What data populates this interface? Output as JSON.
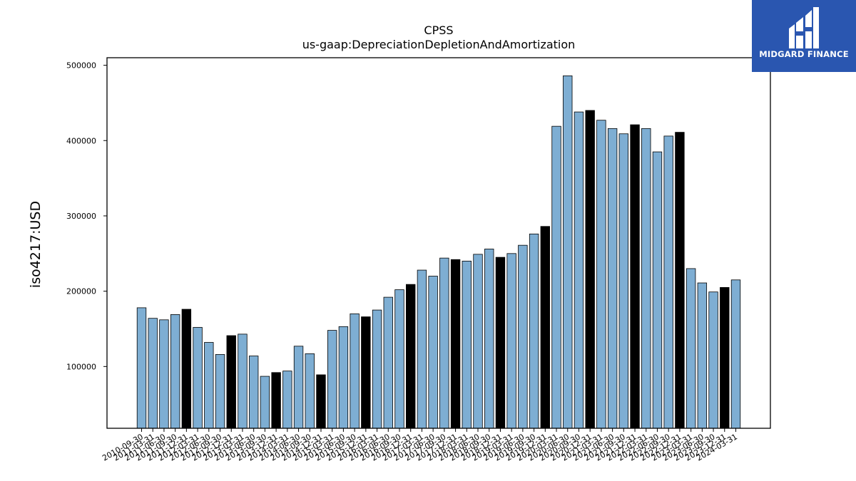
{
  "brand": {
    "name": "MIDGARD FINANCE",
    "logo_icon": "midgard-logo-icon",
    "background": "#2a56b0"
  },
  "chart_data": {
    "type": "bar",
    "title": "CPSS",
    "subtitle": "us-gaap:DepreciationDepletionAndAmortization",
    "xlabel": "",
    "ylabel": "iso4217:USD",
    "ylim": [
      18000,
      510000
    ],
    "yticks": [
      100000,
      200000,
      300000,
      400000,
      500000
    ],
    "ytick_labels": [
      "100000",
      "200000",
      "300000",
      "400000",
      "500000"
    ],
    "grid": false,
    "colors": {
      "quarterly": "#7eaed3",
      "annual": "#000000",
      "edge": "#000000"
    },
    "categories": [
      "2010-09-30",
      "2011-03-31",
      "2011-06-30",
      "2011-09-30",
      "2011-12-31",
      "2012-03-31",
      "2012-06-30",
      "2012-09-30",
      "2012-12-31",
      "2013-03-31",
      "2013-06-30",
      "2013-09-30",
      "2013-12-31",
      "2014-03-31",
      "2014-06-30",
      "2014-09-30",
      "2014-12-31",
      "2015-03-31",
      "2015-06-30",
      "2015-09-30",
      "2015-12-31",
      "2016-03-31",
      "2016-06-30",
      "2016-09-30",
      "2016-12-31",
      "2017-03-31",
      "2017-06-30",
      "2017-09-30",
      "2017-12-31",
      "2018-03-31",
      "2018-06-30",
      "2018-09-30",
      "2018-12-31",
      "2019-03-31",
      "2019-06-30",
      "2019-09-30",
      "2019-12-31",
      "2020-03-31",
      "2020-06-30",
      "2020-09-30",
      "2020-12-31",
      "2021-03-31",
      "2021-06-30",
      "2021-09-30",
      "2021-12-31",
      "2022-03-31",
      "2022-06-30",
      "2022-09-30",
      "2022-12-31",
      "2023-03-31",
      "2023-06-30",
      "2023-09-30",
      "2023-12-31",
      "2024-03-31"
    ],
    "values": [
      178000,
      164000,
      162000,
      169000,
      176000,
      152000,
      132000,
      116000,
      141000,
      143000,
      114000,
      87000,
      92000,
      94000,
      127000,
      117000,
      89000,
      148000,
      153000,
      170000,
      166000,
      175000,
      192000,
      202000,
      209000,
      228000,
      220000,
      244000,
      242000,
      240000,
      249000,
      256000,
      245000,
      250000,
      261000,
      276000,
      286000,
      419000,
      486000,
      438000,
      440000,
      427000,
      416000,
      409000,
      421000,
      416000,
      385000,
      406000,
      411000,
      230000,
      211000,
      199000,
      205000,
      215000
    ],
    "annual": [
      false,
      false,
      false,
      false,
      true,
      false,
      false,
      false,
      true,
      false,
      false,
      false,
      true,
      false,
      false,
      false,
      true,
      false,
      false,
      false,
      true,
      false,
      false,
      false,
      true,
      false,
      false,
      false,
      true,
      false,
      false,
      false,
      true,
      false,
      false,
      false,
      true,
      false,
      false,
      false,
      true,
      false,
      false,
      false,
      true,
      false,
      false,
      false,
      true,
      false,
      false,
      false,
      true,
      false
    ]
  }
}
